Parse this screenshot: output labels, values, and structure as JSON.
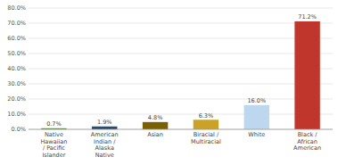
{
  "chart_data": {
    "type": "bar",
    "categories": [
      "Native\nHawaiian\n/ Pacific\nIslander",
      "American\nIndian /\nAlaska\nNative",
      "Asian",
      "Biracial /\nMultiracial",
      "White",
      "Black /\nAfrican\nAmerican"
    ],
    "values": [
      0.7,
      1.9,
      4.8,
      6.3,
      16.0,
      71.2
    ],
    "value_labels": [
      "0.7%",
      "1.9%",
      "4.8%",
      "6.3%",
      "16.0%",
      "71.2%"
    ],
    "colors": [
      "#538135",
      "#2E4A6B",
      "#7B6000",
      "#C9A227",
      "#BDD7EE",
      "#C0362C"
    ],
    "ylim": [
      0,
      80
    ],
    "yticks": [
      {
        "value": 0,
        "label": "0.0%"
      },
      {
        "value": 10,
        "label": "10.0%"
      },
      {
        "value": 20,
        "label": "20.0%"
      },
      {
        "value": 30,
        "label": "30.0%"
      },
      {
        "value": 40,
        "label": "40.0%"
      },
      {
        "value": 50,
        "label": "50.0%"
      },
      {
        "value": 60,
        "label": "60.0%"
      },
      {
        "value": 70,
        "label": "70.0%"
      },
      {
        "value": 80,
        "label": "80.0%"
      }
    ],
    "grid": true,
    "data_labels": true
  }
}
